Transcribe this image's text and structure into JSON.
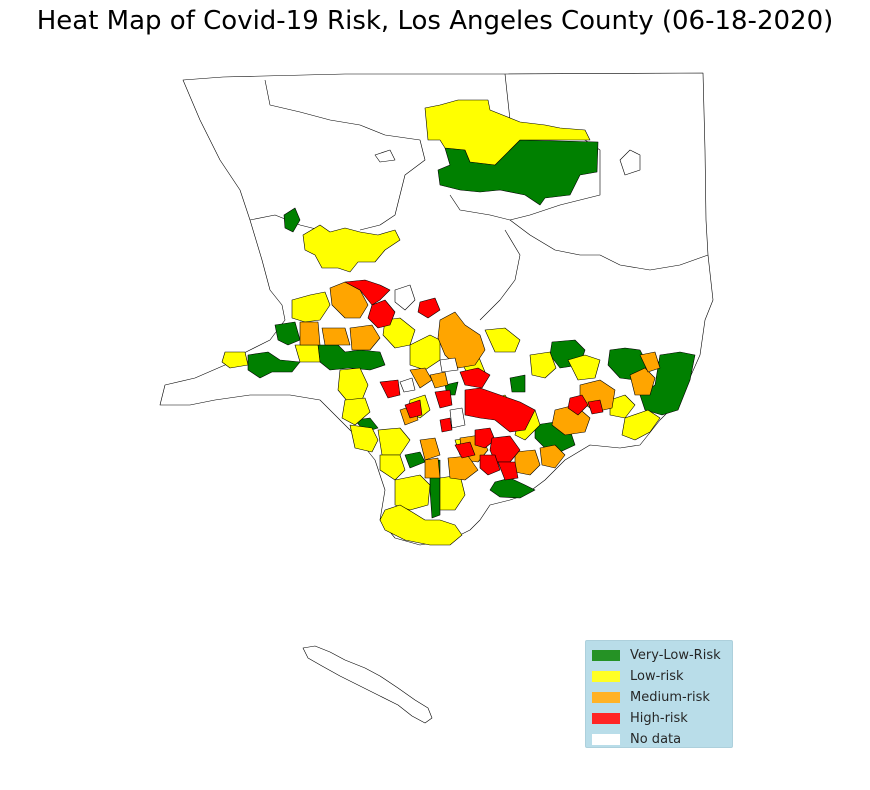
{
  "title": "Heat Map of Covid-19 Risk, Los Angeles County (06-18-2020)",
  "legend": {
    "items": [
      {
        "label": "Very-Low-Risk",
        "color": "#008000"
      },
      {
        "label": "Low-risk",
        "color": "#ffff00"
      },
      {
        "label": "Medium-risk",
        "color": "#ffa500"
      },
      {
        "label": "High-risk",
        "color": "#ff0000"
      },
      {
        "label": "No data",
        "color": "#ffffff"
      }
    ],
    "background": "#add8e6"
  },
  "map": {
    "outline_color": "#000000"
  }
}
